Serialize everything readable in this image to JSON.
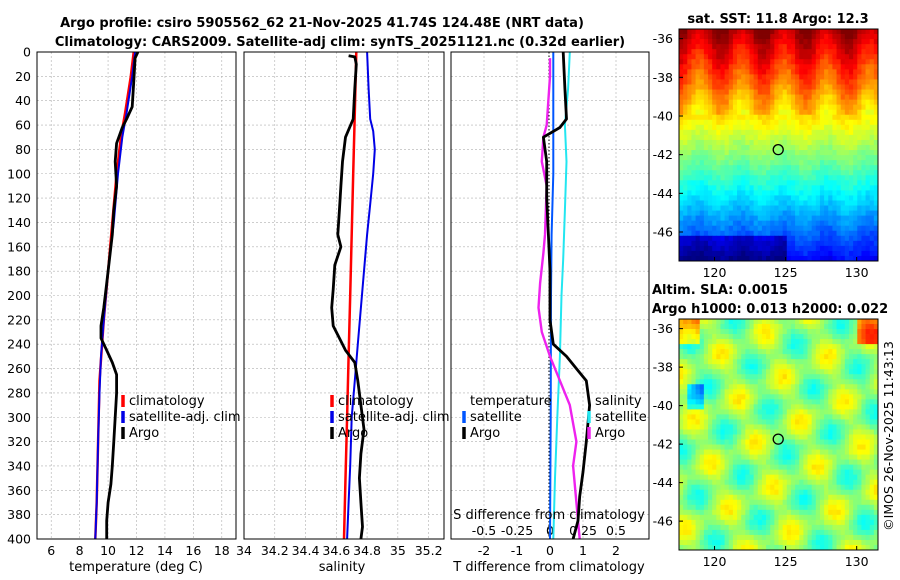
{
  "title": {
    "line1": "Argo profile: csiro 5905562_62 21-Nov-2025 41.74S 124.48E (NRT data)",
    "line2": "Climatology: CARS2009. Satellite-adj clim: synTS_20251121.nc (0.32d earlier)"
  },
  "colors": {
    "climatology": "#ff0000",
    "satellite": "#0000e6",
    "argo": "#000000",
    "t_satellite": "#0055ff",
    "s_argo": "#ee22ee",
    "s_satellite": "#22e6f0",
    "grid": "#b0b0b0"
  },
  "chart_data": [
    {
      "type": "line",
      "id": "temperature",
      "xlabel": "temperature (deg C)",
      "xlim": [
        5,
        19
      ],
      "xticks": [
        6,
        8,
        10,
        12,
        14,
        16,
        18
      ],
      "ylim": [
        0,
        400
      ],
      "yreversed": true,
      "yticks": [
        0,
        20,
        40,
        60,
        80,
        100,
        120,
        140,
        160,
        180,
        200,
        220,
        240,
        260,
        280,
        300,
        320,
        340,
        360,
        380,
        400
      ],
      "legend": [
        "climatology",
        "satellite-adj. clim",
        "Argo"
      ],
      "legend_placement": "lower-right",
      "series": [
        {
          "name": "climatology",
          "color_key": "climatology",
          "width": 2.5,
          "points": [
            [
              11.8,
              0
            ],
            [
              11.6,
              20
            ],
            [
              11.2,
              50
            ],
            [
              10.9,
              70
            ],
            [
              10.6,
              100
            ],
            [
              10.3,
              140
            ],
            [
              10.0,
              180
            ],
            [
              9.7,
              220
            ],
            [
              9.4,
              270
            ],
            [
              9.3,
              320
            ],
            [
              9.2,
              370
            ],
            [
              9.1,
              400
            ]
          ]
        },
        {
          "name": "satellite-adj. clim",
          "color_key": "satellite",
          "width": 2,
          "points": [
            [
              11.9,
              0
            ],
            [
              11.7,
              20
            ],
            [
              11.3,
              50
            ],
            [
              11.0,
              70
            ],
            [
              10.7,
              100
            ],
            [
              10.4,
              140
            ],
            [
              10.0,
              180
            ],
            [
              9.7,
              220
            ],
            [
              9.5,
              250
            ],
            [
              9.4,
              280
            ],
            [
              9.3,
              320
            ],
            [
              9.2,
              370
            ],
            [
              9.1,
              400
            ]
          ]
        },
        {
          "name": "Argo",
          "color_key": "argo",
          "width": 2.8,
          "points": [
            [
              12.1,
              0
            ],
            [
              11.9,
              5
            ],
            [
              11.8,
              25
            ],
            [
              11.7,
              45
            ],
            [
              11.3,
              55
            ],
            [
              11.0,
              62
            ],
            [
              10.6,
              75
            ],
            [
              10.5,
              90
            ],
            [
              10.6,
              110
            ],
            [
              10.4,
              130
            ],
            [
              10.3,
              150
            ],
            [
              10.1,
              170
            ],
            [
              9.9,
              190
            ],
            [
              9.7,
              210
            ],
            [
              9.5,
              225
            ],
            [
              9.5,
              235
            ],
            [
              9.9,
              245
            ],
            [
              10.3,
              255
            ],
            [
              10.6,
              265
            ],
            [
              10.6,
              280
            ],
            [
              10.5,
              300
            ],
            [
              10.4,
              320
            ],
            [
              10.3,
              340
            ],
            [
              10.2,
              355
            ],
            [
              10.0,
              370
            ],
            [
              9.9,
              385
            ],
            [
              9.9,
              400
            ]
          ]
        }
      ]
    },
    {
      "type": "line",
      "id": "salinity",
      "xlabel": "salinity",
      "xlim": [
        34,
        35.3
      ],
      "xticks": [
        34,
        34.2,
        34.4,
        34.6,
        34.8,
        35,
        35.2
      ],
      "xticklabels": [
        "34",
        "34.2",
        "34.4",
        "34.6",
        "34.8",
        "35",
        "35.2"
      ],
      "ylim": [
        0,
        400
      ],
      "yreversed": true,
      "legend": [
        "climatology",
        "satellite-adj. clim",
        "Argo"
      ],
      "legend_placement": "lower-right",
      "series": [
        {
          "name": "climatology",
          "color_key": "climatology",
          "width": 2.5,
          "points": [
            [
              34.73,
              0
            ],
            [
              34.72,
              50
            ],
            [
              34.71,
              100
            ],
            [
              34.7,
              150
            ],
            [
              34.69,
              200
            ],
            [
              34.68,
              250
            ],
            [
              34.67,
              300
            ],
            [
              34.66,
              350
            ],
            [
              34.65,
              400
            ]
          ]
        },
        {
          "name": "satellite-adj. clim",
          "color_key": "satellite",
          "width": 2,
          "points": [
            [
              34.8,
              0
            ],
            [
              34.81,
              30
            ],
            [
              34.82,
              55
            ],
            [
              34.84,
              65
            ],
            [
              34.85,
              80
            ],
            [
              34.84,
              100
            ],
            [
              34.82,
              125
            ],
            [
              34.8,
              150
            ],
            [
              34.78,
              180
            ],
            [
              34.76,
              210
            ],
            [
              34.74,
              240
            ],
            [
              34.72,
              270
            ],
            [
              34.7,
              300
            ],
            [
              34.69,
              340
            ],
            [
              34.68,
              370
            ],
            [
              34.67,
              400
            ]
          ]
        },
        {
          "name": "Argo",
          "color_key": "argo",
          "width": 2.8,
          "points": [
            [
              34.68,
              3
            ],
            [
              34.72,
              4
            ],
            [
              34.73,
              10
            ],
            [
              34.72,
              30
            ],
            [
              34.71,
              55
            ],
            [
              34.66,
              70
            ],
            [
              34.64,
              90
            ],
            [
              34.63,
              110
            ],
            [
              34.62,
              130
            ],
            [
              34.61,
              150
            ],
            [
              34.63,
              160
            ],
            [
              34.59,
              175
            ],
            [
              34.58,
              195
            ],
            [
              34.57,
              210
            ],
            [
              34.58,
              225
            ],
            [
              34.62,
              235
            ],
            [
              34.66,
              245
            ],
            [
              34.72,
              255
            ],
            [
              34.74,
              270
            ],
            [
              34.76,
              290
            ],
            [
              34.78,
              310
            ],
            [
              34.76,
              330
            ],
            [
              34.75,
              350
            ],
            [
              34.76,
              370
            ],
            [
              34.77,
              390
            ],
            [
              34.76,
              400
            ]
          ]
        }
      ]
    },
    {
      "type": "line",
      "id": "difference",
      "xlabel": "T difference from climatology",
      "xlabel_top": "S difference from climatology",
      "xlim": [
        -3,
        3
      ],
      "xticks": [
        -2,
        -1,
        0,
        1,
        2
      ],
      "s_scale": 4,
      "s_ticks": [
        -0.5,
        -0.25,
        0,
        0.25,
        0.5
      ],
      "s_ticklabels": [
        "-0.5",
        "-0.25",
        "0",
        "0.25",
        "0.5"
      ],
      "ylim": [
        0,
        400
      ],
      "yreversed": true,
      "legend_t": {
        "header": "temperature",
        "items": [
          "satellite",
          "Argo"
        ]
      },
      "legend_s": {
        "header": "salinity",
        "items": [
          "satellite",
          "Argo"
        ]
      },
      "series": [
        {
          "name": "T satellite",
          "color_key": "t_satellite",
          "width": 2,
          "points": [
            [
              0.1,
              0
            ],
            [
              0.1,
              50
            ],
            [
              0.1,
              100
            ],
            [
              0.05,
              150
            ],
            [
              0.03,
              200
            ],
            [
              0.02,
              300
            ],
            [
              0.0,
              400
            ]
          ]
        },
        {
          "name": "S satellite",
          "color_key": "s_satellite",
          "width": 2,
          "points": [
            [
              0.6,
              0
            ],
            [
              0.55,
              30
            ],
            [
              0.45,
              60
            ],
            [
              0.5,
              90
            ],
            [
              0.45,
              130
            ],
            [
              0.4,
              170
            ],
            [
              0.35,
              200
            ],
            [
              0.3,
              250
            ],
            [
              0.22,
              300
            ],
            [
              0.15,
              350
            ],
            [
              0.1,
              400
            ]
          ]
        },
        {
          "name": "S Argo",
          "color_key": "s_argo",
          "width": 2.4,
          "points": [
            [
              0.0,
              5
            ],
            [
              0.0,
              20
            ],
            [
              -0.1,
              60
            ],
            [
              -0.2,
              70
            ],
            [
              -0.25,
              90
            ],
            [
              -0.1,
              110
            ],
            [
              -0.15,
              150
            ],
            [
              -0.2,
              165
            ],
            [
              -0.3,
              190
            ],
            [
              -0.35,
              210
            ],
            [
              -0.25,
              230
            ],
            [
              0.0,
              250
            ],
            [
              0.3,
              270
            ],
            [
              0.6,
              290
            ],
            [
              0.8,
              320
            ],
            [
              0.7,
              340
            ],
            [
              0.8,
              370
            ],
            [
              0.9,
              400
            ]
          ]
        },
        {
          "name": "T Argo",
          "color_key": "argo",
          "width": 2.8,
          "points": [
            [
              0.4,
              0
            ],
            [
              0.45,
              30
            ],
            [
              0.5,
              55
            ],
            [
              0.3,
              62
            ],
            [
              -0.2,
              70
            ],
            [
              -0.1,
              90
            ],
            [
              -0.1,
              120
            ],
            [
              -0.05,
              150
            ],
            [
              0.0,
              180
            ],
            [
              0.0,
              220
            ],
            [
              0.1,
              240
            ],
            [
              0.5,
              250
            ],
            [
              0.8,
              260
            ],
            [
              1.1,
              270
            ],
            [
              1.2,
              290
            ],
            [
              1.1,
              320
            ],
            [
              1.0,
              345
            ],
            [
              0.9,
              365
            ],
            [
              0.85,
              385
            ],
            [
              0.7,
              400
            ]
          ]
        }
      ]
    },
    {
      "type": "heatmap",
      "id": "sst",
      "title": "sat. SST: 11.8 Argo: 12.3",
      "xlim": [
        117.5,
        131.5
      ],
      "ylim": [
        -47.5,
        -35.5
      ],
      "xticks": [
        120,
        125,
        130
      ],
      "yticks": [
        -36,
        -38,
        -40,
        -42,
        -44,
        -46
      ],
      "marker": {
        "lon": 124.48,
        "lat": -41.74
      }
    },
    {
      "type": "heatmap",
      "id": "sla",
      "title_line1": "Altim. SLA: 0.0015",
      "title_line2": "Argo h1000: 0.013 h2000: 0.022",
      "xlim": [
        117.5,
        131.5
      ],
      "ylim": [
        -47.5,
        -35.5
      ],
      "xticks": [
        120,
        125,
        130
      ],
      "yticks": [
        -36,
        -38,
        -40,
        -42,
        -44,
        -46
      ],
      "marker": {
        "lon": 124.48,
        "lat": -41.74
      }
    }
  ],
  "watermark": "©IMOS 26-Nov-2025 11:43:13"
}
